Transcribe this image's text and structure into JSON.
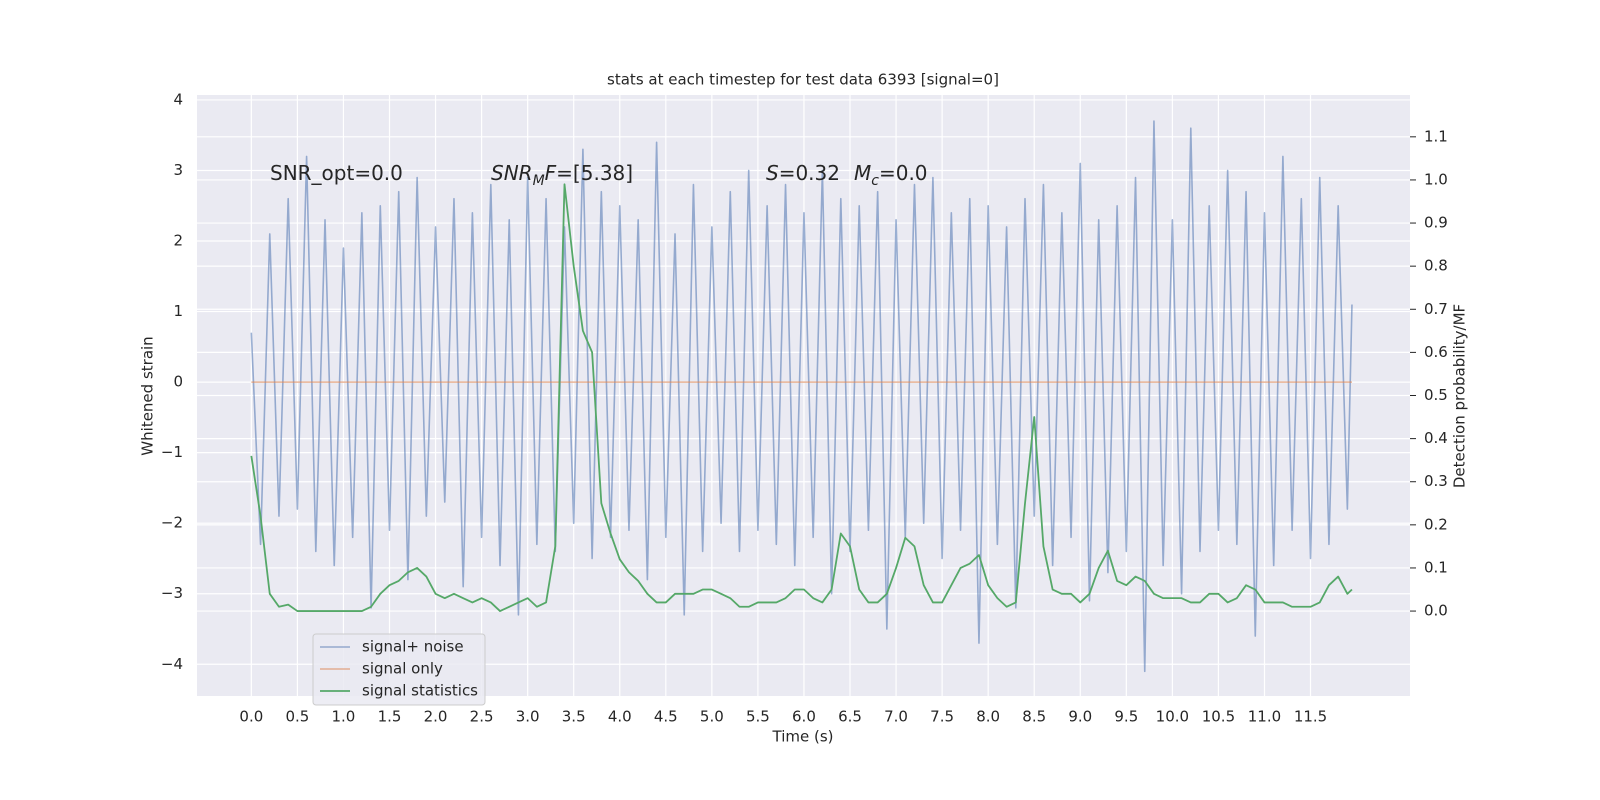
{
  "chart_data": {
    "type": "line",
    "title": "stats at each timestep for test data 6393 [signal=0]",
    "x_label": "Time (s)",
    "y_label": "Whitened strain",
    "y2_label": "Detection probability/MF",
    "x": [
      0,
      0.1,
      0.2,
      0.3,
      0.4,
      0.5,
      0.6,
      0.7,
      0.8,
      0.9,
      1.0,
      1.1,
      1.2,
      1.3,
      1.4,
      1.5,
      1.6,
      1.7,
      1.8,
      1.9,
      2.0,
      2.1,
      2.2,
      2.3,
      2.4,
      2.5,
      2.6,
      2.7,
      2.8,
      2.9,
      3.0,
      3.1,
      3.2,
      3.3,
      3.4,
      3.5,
      3.6,
      3.7,
      3.8,
      3.9,
      4.0,
      4.1,
      4.2,
      4.3,
      4.4,
      4.5,
      4.6,
      4.7,
      4.8,
      4.9,
      5.0,
      5.1,
      5.2,
      5.3,
      5.4,
      5.5,
      5.6,
      5.7,
      5.8,
      5.9,
      6.0,
      6.1,
      6.2,
      6.3,
      6.4,
      6.5,
      6.6,
      6.7,
      6.8,
      6.9,
      7.0,
      7.1,
      7.2,
      7.3,
      7.4,
      7.5,
      7.6,
      7.7,
      7.8,
      7.9,
      8.0,
      8.1,
      8.2,
      8.3,
      8.4,
      8.5,
      8.6,
      8.7,
      8.8,
      8.9,
      9.0,
      9.1,
      9.2,
      9.3,
      9.4,
      9.5,
      9.6,
      9.7,
      9.8,
      9.9,
      10.0,
      10.1,
      10.2,
      10.3,
      10.4,
      10.5,
      10.6,
      10.7,
      10.8,
      10.9,
      11.0,
      11.1,
      11.2,
      11.3,
      11.4,
      11.5,
      11.6,
      11.7,
      11.8,
      11.9,
      11.95
    ],
    "series": [
      {
        "name": "signal+ noise",
        "color": "#4c72b0",
        "values": [
          0.7,
          -2.3,
          2.1,
          -1.9,
          2.6,
          -1.8,
          3.2,
          -2.4,
          2.3,
          -2.6,
          1.9,
          -2.2,
          2.4,
          -3.2,
          2.5,
          -2.1,
          2.7,
          -2.8,
          2.9,
          -1.9,
          2.2,
          -1.7,
          2.6,
          -2.9,
          2.4,
          -2.2,
          2.8,
          -2.6,
          2.3,
          -3.3,
          2.9,
          -2.3,
          2.6,
          -2.4,
          2.2,
          -2.0,
          3.3,
          -2.5,
          2.7,
          -2.2,
          2.5,
          -2.1,
          2.3,
          -2.8,
          3.4,
          -2.2,
          2.1,
          -3.3,
          2.8,
          -2.4,
          2.2,
          -2.0,
          2.7,
          -2.4,
          3.0,
          -2.1,
          2.5,
          -2.3,
          2.8,
          -2.6,
          2.4,
          -2.2,
          3.0,
          -3.0,
          2.6,
          -2.4,
          2.5,
          -2.1,
          2.7,
          -3.5,
          2.3,
          -2.2,
          2.8,
          -2.0,
          2.9,
          -2.5,
          2.4,
          -2.1,
          2.6,
          -3.7,
          2.5,
          -2.3,
          2.2,
          -3.2,
          2.6,
          -1.9,
          2.8,
          -2.6,
          2.4,
          -2.2,
          3.1,
          -3.1,
          2.3,
          -2.7,
          2.5,
          -2.4,
          2.9,
          -4.1,
          3.7,
          -2.6,
          2.3,
          -3.0,
          3.6,
          -2.4,
          2.5,
          -2.1,
          3.0,
          -2.3,
          2.7,
          -3.6,
          2.4,
          -2.6,
          3.2,
          -2.1,
          2.6,
          -2.5,
          2.9,
          -2.3,
          2.5,
          -1.8,
          1.1
        ]
      },
      {
        "name": "signal only",
        "color": "#dd8452",
        "x": [
          0,
          11.95
        ],
        "values": [
          0,
          0
        ]
      },
      {
        "name": "signal statistics",
        "color": "#55a868",
        "axis": "y2",
        "values": [
          0.36,
          0.22,
          0.04,
          0.01,
          0.015,
          0.0,
          0.0,
          0.0,
          0.0,
          0.0,
          0.0,
          0.0,
          0.0,
          0.01,
          0.04,
          0.06,
          0.07,
          0.09,
          0.1,
          0.08,
          0.04,
          0.03,
          0.04,
          0.03,
          0.02,
          0.03,
          0.02,
          0.0,
          0.01,
          0.02,
          0.03,
          0.01,
          0.02,
          0.15,
          0.99,
          0.8,
          0.65,
          0.6,
          0.25,
          0.18,
          0.12,
          0.09,
          0.07,
          0.04,
          0.02,
          0.02,
          0.04,
          0.04,
          0.04,
          0.05,
          0.05,
          0.04,
          0.03,
          0.01,
          0.01,
          0.02,
          0.02,
          0.02,
          0.03,
          0.05,
          0.05,
          0.03,
          0.02,
          0.05,
          0.18,
          0.15,
          0.05,
          0.02,
          0.02,
          0.04,
          0.1,
          0.17,
          0.15,
          0.06,
          0.02,
          0.02,
          0.06,
          0.1,
          0.11,
          0.13,
          0.06,
          0.03,
          0.01,
          0.02,
          0.25,
          0.45,
          0.15,
          0.05,
          0.04,
          0.04,
          0.02,
          0.04,
          0.1,
          0.14,
          0.07,
          0.06,
          0.08,
          0.07,
          0.04,
          0.03,
          0.03,
          0.03,
          0.02,
          0.02,
          0.04,
          0.04,
          0.02,
          0.03,
          0.06,
          0.05,
          0.02,
          0.02,
          0.02,
          0.01,
          0.01,
          0.01,
          0.02,
          0.06,
          0.08,
          0.04,
          0.05
        ]
      }
    ],
    "xlim": [
      -0.59,
      12.58
    ],
    "ylim": [
      -4.45,
      4.07
    ],
    "y2lim": [
      -0.197,
      1.197
    ],
    "xticks": [
      {
        "value": 0,
        "label": "0.0"
      },
      {
        "value": 0.5,
        "label": "0.5"
      },
      {
        "value": 1,
        "label": "1.0"
      },
      {
        "value": 1.5,
        "label": "1.5"
      },
      {
        "value": 2,
        "label": "2.0"
      },
      {
        "value": 2.5,
        "label": "2.5"
      },
      {
        "value": 3,
        "label": "3.0"
      },
      {
        "value": 3.5,
        "label": "3.5"
      },
      {
        "value": 4,
        "label": "4.0"
      },
      {
        "value": 4.5,
        "label": "4.5"
      },
      {
        "value": 5,
        "label": "5.0"
      },
      {
        "value": 5.5,
        "label": "5.5"
      },
      {
        "value": 6,
        "label": "6.0"
      },
      {
        "value": 6.5,
        "label": "6.5"
      },
      {
        "value": 7,
        "label": "7.0"
      },
      {
        "value": 7.5,
        "label": "7.5"
      },
      {
        "value": 8,
        "label": "8.0"
      },
      {
        "value": 8.5,
        "label": "8.5"
      },
      {
        "value": 9,
        "label": "9.0"
      },
      {
        "value": 9.5,
        "label": "9.5"
      },
      {
        "value": 10,
        "label": "10.0"
      },
      {
        "value": 10.5,
        "label": "10.5"
      },
      {
        "value": 11,
        "label": "11.0"
      },
      {
        "value": 11.5,
        "label": "11.5"
      }
    ],
    "yticks": [
      {
        "value": -4,
        "label": "−4"
      },
      {
        "value": -3,
        "label": "−3"
      },
      {
        "value": -2,
        "label": "−2"
      },
      {
        "value": -1,
        "label": "−1"
      },
      0,
      1,
      2,
      3,
      4
    ],
    "y2ticks": [
      {
        "value": 0,
        "label": "0.0"
      },
      {
        "value": 0.1,
        "label": "0.1"
      },
      {
        "value": 0.2,
        "label": "0.2"
      },
      {
        "value": 0.3,
        "label": "0.3"
      },
      {
        "value": 0.4,
        "label": "0.4"
      },
      {
        "value": 0.5,
        "label": "0.5"
      },
      {
        "value": 0.6,
        "label": "0.6"
      },
      {
        "value": 0.7,
        "label": "0.7"
      },
      {
        "value": 0.8,
        "label": "0.8"
      },
      {
        "value": 0.9,
        "label": "0.9"
      },
      {
        "value": 1,
        "label": "1.0"
      },
      {
        "value": 1.1,
        "label": "1.1"
      }
    ],
    "grid": true,
    "legend": "lower left",
    "annotations": [
      {
        "parts": [
          {
            "text": "SNR_opt=0.0"
          }
        ]
      },
      {
        "parts": [
          {
            "text": "SNR",
            "style": "italic"
          },
          {
            "text": "M",
            "style": "italic-sub"
          },
          {
            "text": "F",
            "style": "italic"
          },
          {
            "text": "=[5.38]"
          }
        ]
      },
      {
        "parts": [
          {
            "text": "S",
            "style": "italic"
          },
          {
            "text": "=0.32"
          },
          {
            "text": "M",
            "style": "italic"
          },
          {
            "text": "c",
            "style": "italic-sub"
          },
          {
            "text": "=0.0"
          }
        ]
      }
    ]
  }
}
